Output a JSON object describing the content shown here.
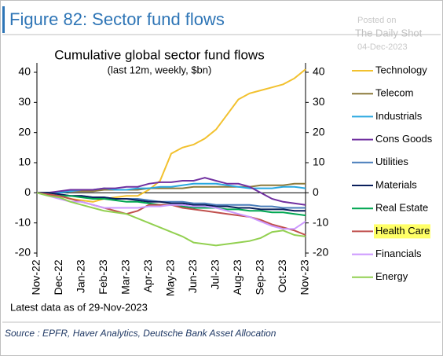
{
  "figure_title": "Figure 82: Sector fund flows",
  "watermark": {
    "posted": "Posted on",
    "site": "The Daily Shot",
    "date": "04-Dec-2023"
  },
  "note": "Latest data as of 29-Nov-2023",
  "source": "Source : EPFR, Haver Analytics, Deutsche Bank Asset Allocation",
  "chart_data": {
    "type": "line",
    "title": "Cumulative global sector fund flows",
    "subtitle": "(last 12m, weekly, $bn)",
    "categories": [
      "Nov-22",
      null,
      "Dec-22",
      null,
      "Jan-23",
      null,
      "Feb-23",
      null,
      "Mar-23",
      null,
      "Apr-23",
      null,
      "May-23",
      null,
      "Jun-23",
      null,
      "Jul-23",
      null,
      "Aug-23",
      null,
      "Sep-23",
      null,
      "Oct-23",
      null,
      "Nov-23"
    ],
    "ylim": [
      -20,
      40
    ],
    "yticks": [
      40,
      30,
      20,
      10,
      0,
      -10,
      -20
    ],
    "y2lim": [
      -20,
      40
    ],
    "y2ticks": [
      40,
      30,
      20,
      10,
      0,
      -10,
      -20
    ],
    "legend": "right",
    "highlight": "Health Care",
    "series": [
      {
        "name": "Technology",
        "color": "#f2c12e",
        "values": [
          0,
          -0.5,
          -1,
          -2,
          -2.5,
          -3,
          -2,
          -1.5,
          -1,
          -1,
          1,
          4,
          13,
          15,
          16,
          18,
          21,
          26,
          31,
          33,
          34,
          35,
          36,
          38,
          41
        ]
      },
      {
        "name": "Telecom",
        "color": "#8c7a3c",
        "values": [
          0,
          0,
          0,
          0.5,
          0.5,
          0.5,
          1,
          1,
          1,
          1,
          1.5,
          1.5,
          1.5,
          1.5,
          2,
          2,
          2,
          2,
          2,
          2,
          2.5,
          2.5,
          2.5,
          3,
          3
        ]
      },
      {
        "name": "Industrials",
        "color": "#29a8e0",
        "values": [
          0,
          0,
          0,
          0.5,
          1,
          1,
          1.5,
          1,
          1,
          1.5,
          1.5,
          2,
          2,
          2.5,
          3,
          3,
          3,
          2.5,
          2,
          1.5,
          1.5,
          1.5,
          2,
          2,
          1.5
        ]
      },
      {
        "name": "Cons Goods",
        "color": "#7030a0",
        "values": [
          0,
          0,
          0.5,
          1,
          1,
          1,
          1.5,
          1.5,
          2,
          2,
          3,
          3.5,
          3.5,
          4,
          4,
          5,
          4,
          3,
          3,
          2,
          0,
          -2,
          -3,
          -3.5,
          -4
        ]
      },
      {
        "name": "Utilities",
        "color": "#4a7ebb",
        "values": [
          0,
          0,
          -0.5,
          -1,
          -1,
          -1.5,
          -1.5,
          -2,
          -2,
          -2,
          -2.5,
          -3,
          -3,
          -3,
          -3.5,
          -3.5,
          -4,
          -4,
          -4,
          -4,
          -4.5,
          -4.5,
          -5,
          -5,
          -5
        ]
      },
      {
        "name": "Materials",
        "color": "#0a1f5c",
        "values": [
          0,
          0,
          -0.5,
          -1,
          -1,
          -1.5,
          -1.5,
          -2,
          -2,
          -2.5,
          -3,
          -3,
          -3.5,
          -3.5,
          -4,
          -4,
          -4.5,
          -4.5,
          -5,
          -5,
          -5.5,
          -5.5,
          -5.5,
          -6,
          -6
        ]
      },
      {
        "name": "Real Estate",
        "color": "#00a651",
        "values": [
          0,
          -0.5,
          -1,
          -1,
          -1.5,
          -2,
          -2,
          -2.5,
          -3,
          -3,
          -3.5,
          -4,
          -4,
          -4.5,
          -5,
          -5,
          -5,
          -5.5,
          -5.5,
          -6,
          -6,
          -6.5,
          -6.5,
          -7,
          -7.5
        ]
      },
      {
        "name": "Health Care",
        "color": "#c0504d",
        "values": [
          0,
          -0.5,
          -1,
          -2,
          -3,
          -4,
          -5,
          -6,
          -7,
          -6,
          -4,
          -4,
          -4,
          -5,
          -5.5,
          -6,
          -6.5,
          -7,
          -7.5,
          -8,
          -9,
          -10.5,
          -11.5,
          -12.5,
          -14
        ]
      },
      {
        "name": "Financials",
        "color": "#cc99ff",
        "values": [
          0,
          -1,
          -2,
          -3,
          -3,
          -4,
          -5,
          -5,
          -5,
          -5,
          -4.5,
          -4.5,
          -4,
          -4,
          -4.5,
          -4.5,
          -5,
          -6,
          -7,
          -8,
          -9.5,
          -11,
          -12,
          -12,
          -9.5
        ]
      },
      {
        "name": "Energy",
        "color": "#92d050",
        "values": [
          0,
          -1,
          -1.5,
          -3,
          -4,
          -5,
          -6,
          -6.5,
          -7,
          -8.5,
          -10,
          -11.5,
          -13,
          -14.5,
          -16.5,
          -17,
          -17.5,
          -17,
          -16.5,
          -16,
          -15,
          -13,
          -12.5,
          -14,
          -14.5
        ]
      }
    ]
  }
}
